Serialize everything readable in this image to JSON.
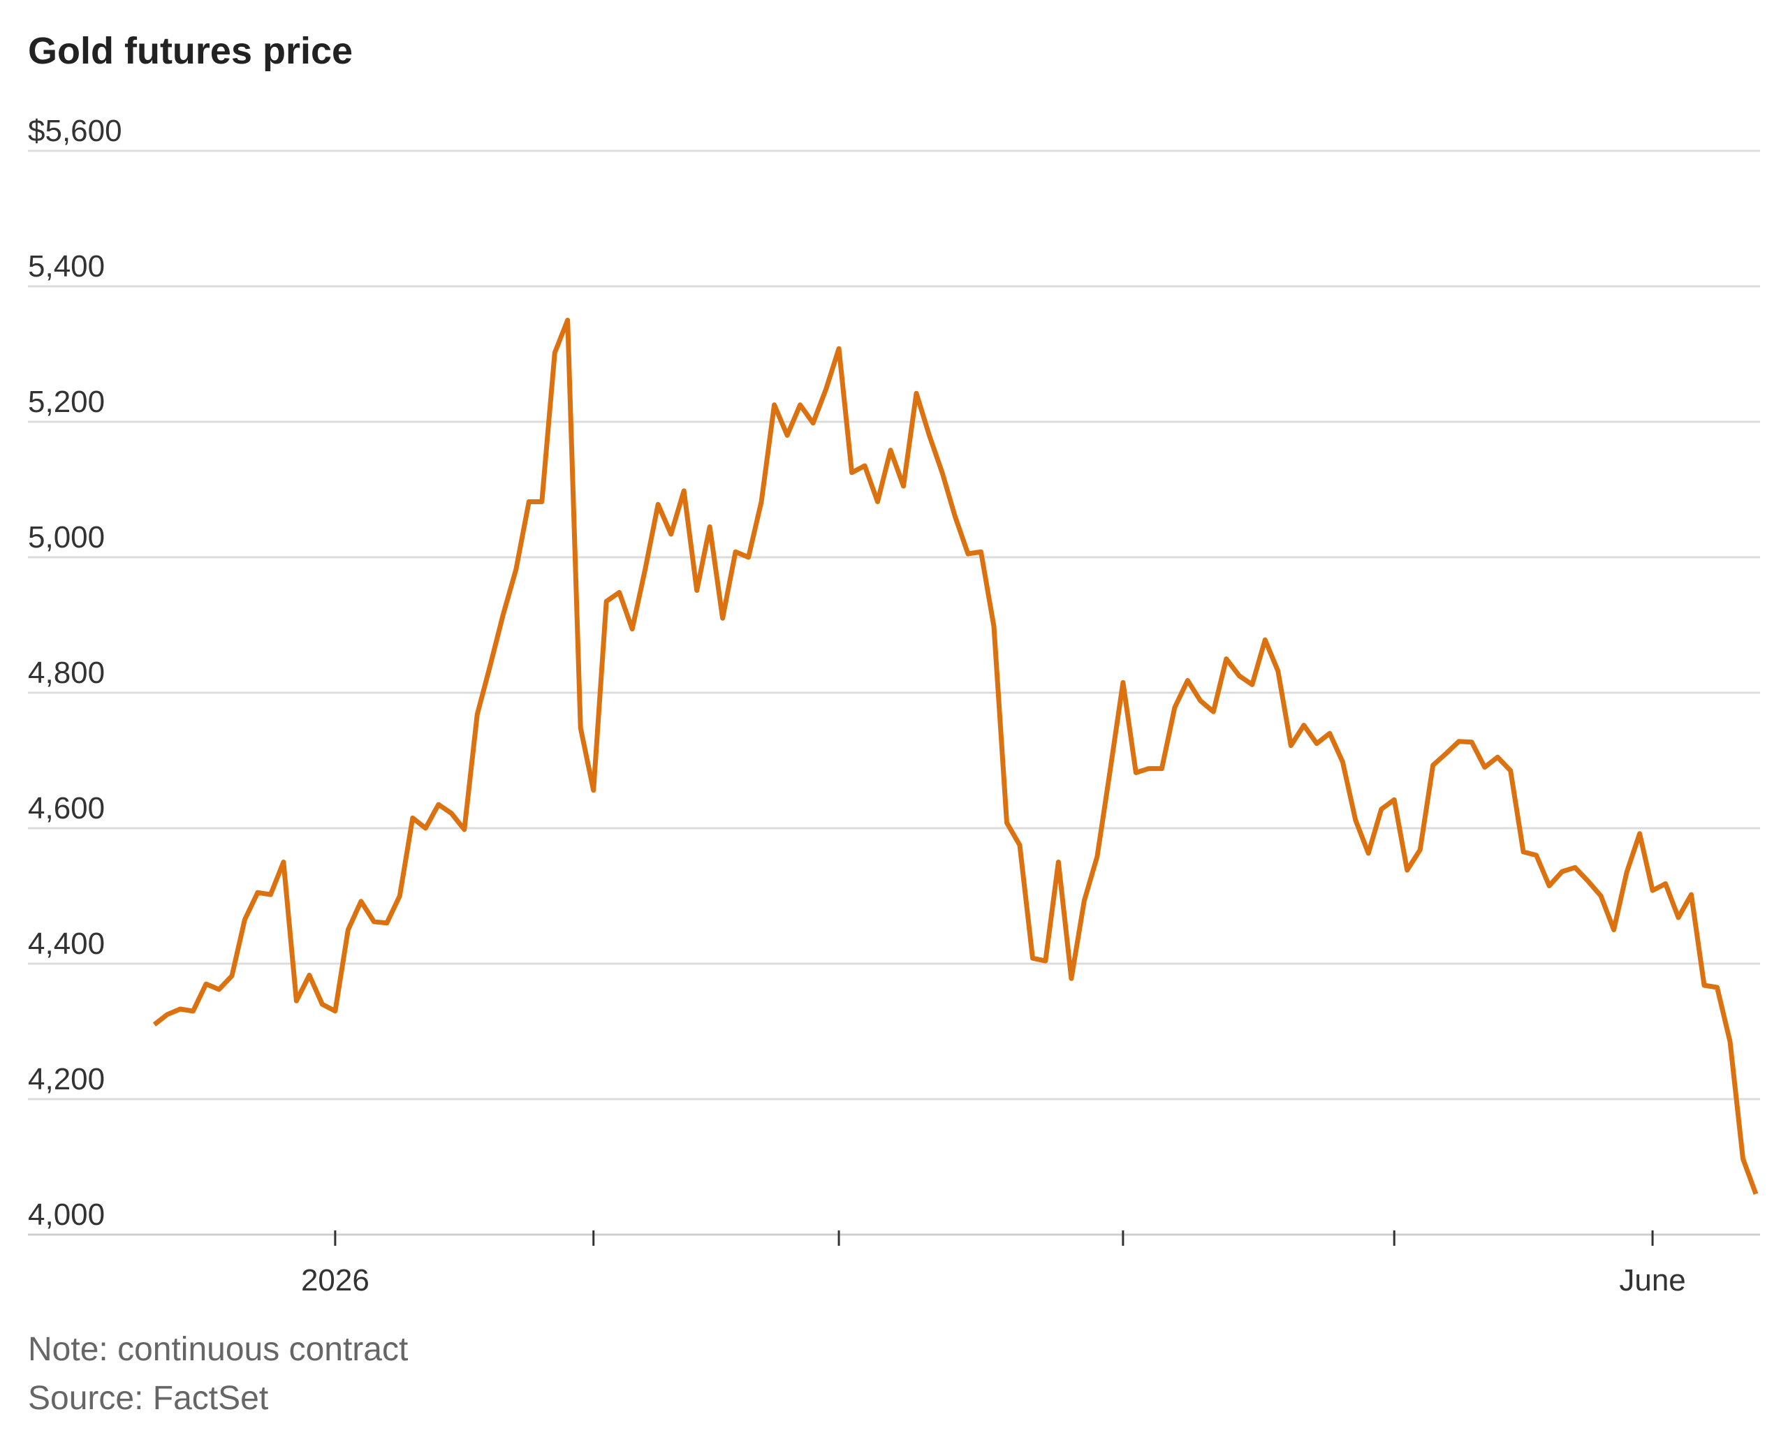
{
  "chart_data": {
    "type": "line",
    "title": "Gold futures price",
    "xlabel": "",
    "ylabel": "",
    "ylim": [
      4000,
      5600
    ],
    "y_ticks": [
      {
        "value": 5600,
        "label": "$5,600"
      },
      {
        "value": 5400,
        "label": "5,400"
      },
      {
        "value": 5200,
        "label": "5,200"
      },
      {
        "value": 5000,
        "label": "5,000"
      },
      {
        "value": 4800,
        "label": "4,800"
      },
      {
        "value": 4600,
        "label": "4,600"
      },
      {
        "value": 4400,
        "label": "4,400"
      },
      {
        "value": 4200,
        "label": "4,200"
      },
      {
        "value": 4000,
        "label": "4,000"
      }
    ],
    "x_ticks": [
      {
        "index": 14,
        "label": "2026"
      },
      {
        "index": 34,
        "label": ""
      },
      {
        "index": 53,
        "label": ""
      },
      {
        "index": 75,
        "label": ""
      },
      {
        "index": 96,
        "label": ""
      },
      {
        "index": 116,
        "label": "June"
      }
    ],
    "grid": true,
    "legend": "none",
    "colors": {
      "line": "#DB720F",
      "gridline": "#dcdcdc",
      "text": "#333333",
      "note": "#666666"
    },
    "series": [
      {
        "values": [
          4310,
          4325,
          4333,
          4330,
          4370,
          4362,
          4382,
          4465,
          4505,
          4502,
          4550,
          4345,
          4383,
          4340,
          4330,
          4450,
          4492,
          4462,
          4460,
          4500,
          4615,
          4600,
          4635,
          4622,
          4598,
          4768,
          4840,
          4915,
          4982,
          5082,
          5082,
          5302,
          5350,
          4748,
          4656,
          4935,
          4948,
          4894,
          4982,
          5078,
          5034,
          5098,
          4951,
          5045,
          4910,
          5008,
          5000,
          5082,
          5225,
          5180,
          5225,
          5198,
          5248,
          5308,
          5125,
          5135,
          5082,
          5158,
          5105,
          5242,
          5180,
          5125,
          5060,
          5005,
          5008,
          4898,
          4608,
          4575,
          4408,
          4404,
          4550,
          4378,
          4493,
          4558,
          4685,
          4815,
          4682,
          4688,
          4688,
          4778,
          4818,
          4788,
          4772,
          4850,
          4825,
          4812,
          4878,
          4832,
          4722,
          4752,
          4725,
          4740,
          4698,
          4612,
          4563,
          4628,
          4642,
          4538,
          4568,
          4693,
          4710,
          4728,
          4727,
          4690,
          4705,
          4685,
          4565,
          4560,
          4515,
          4536,
          4542,
          4522,
          4500,
          4450,
          4535,
          4592,
          4508,
          4518,
          4468,
          4502,
          4368,
          4365,
          4285,
          4112,
          4060
        ]
      }
    ],
    "notes": [
      "Note: continuous contract",
      "Source: FactSet"
    ]
  }
}
